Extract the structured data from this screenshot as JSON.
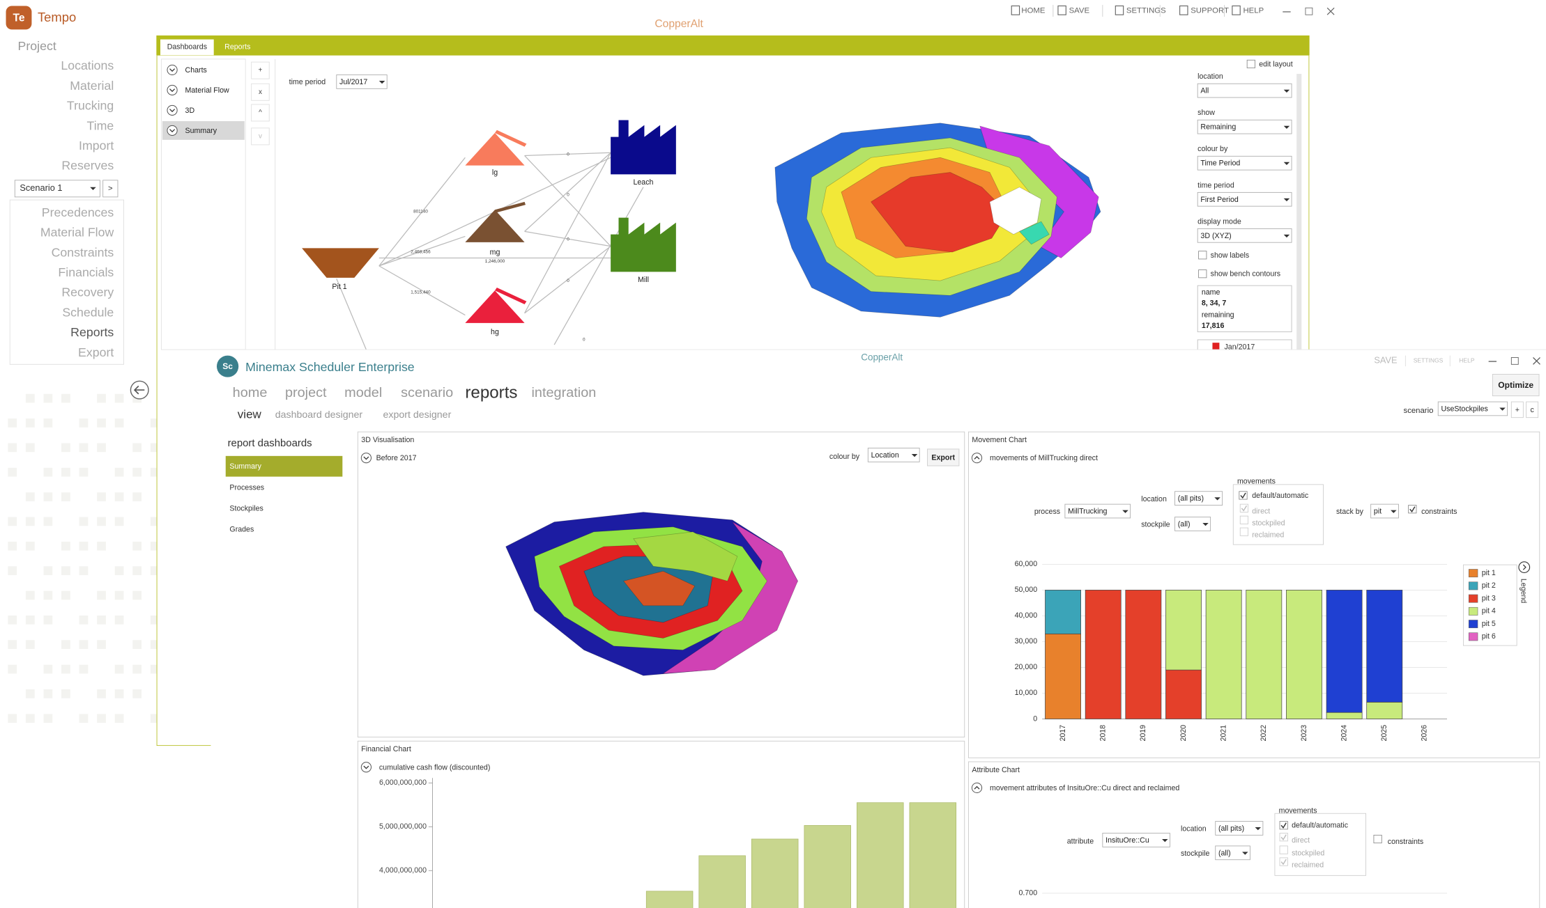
{
  "tempo": {
    "logo": "Te",
    "app_name": "Tempo",
    "project_name": "CopperAlt",
    "menu": [
      "HOME",
      "SAVE",
      "SETTINGS",
      "SUPPORT",
      "HELP"
    ],
    "nav_header": "Project",
    "nav_items": [
      "Locations",
      "Material",
      "Trucking",
      "Time",
      "Import",
      "Reserves"
    ],
    "scenario": "Scenario 1",
    "scenario_button": ">",
    "scenario_items": [
      "Precedences",
      "Material Flow",
      "Constraints",
      "Financials",
      "Recovery",
      "Schedule",
      "Reports",
      "Export"
    ],
    "tabs": [
      "Dashboards",
      "Reports"
    ],
    "dashboards": [
      "Charts",
      "Material Flow",
      "3D",
      "Summary"
    ],
    "list_buttons": [
      "+",
      "x",
      "^",
      "v"
    ],
    "time_period_label": "time period",
    "time_period": "Jul/2017",
    "flow": {
      "nodes": [
        "Pit 1",
        "lg",
        "mg",
        "hg",
        "Leach",
        "Mill"
      ],
      "mg_amount": "1,246,000",
      "edge_labels": [
        "801140",
        "2,468,456",
        "1,515,440",
        "0",
        "0",
        "0",
        "0",
        "0"
      ]
    },
    "settings": {
      "edit_layout": "edit layout",
      "fields": [
        {
          "label": "location",
          "value": "All"
        },
        {
          "label": "show",
          "value": "Remaining"
        },
        {
          "label": "colour by",
          "value": "Time Period"
        },
        {
          "label": "time period",
          "value": "First Period"
        },
        {
          "label": "display mode",
          "value": "3D (XYZ)"
        }
      ],
      "show_labels": "show labels",
      "show_bench_contours": "show bench contours",
      "info": [
        "name",
        "8, 34, 7",
        "remaining",
        "17,816"
      ],
      "legend_first": "Jan/2017"
    }
  },
  "minemax": {
    "logo": "Sc",
    "app_name": "Minemax Scheduler Enterprise",
    "project_name": "CopperAlt",
    "menu": [
      "SAVE",
      "SETTINGS",
      "HELP"
    ],
    "optimize": "Optimize",
    "nav": [
      "home",
      "project",
      "model",
      "scenario",
      "reports",
      "integration"
    ],
    "subnav": [
      "view",
      "dashboard designer",
      "export designer"
    ],
    "scenario_label": "scenario",
    "scenario": "UseStockpiles",
    "scenario_buttons": [
      "+",
      "c"
    ],
    "sidebar_title": "report dashboards",
    "sidebar_items": [
      "Summary",
      "Processes",
      "Stockpiles",
      "Grades"
    ],
    "visualisation": {
      "title": "3D Visualisation",
      "period": "Before 2017",
      "colour_by_label": "colour by",
      "colour_by": "Location",
      "export": "Export"
    },
    "financial_chart": {
      "type": "bar",
      "title": "Financial Chart",
      "subtitle": "cumulative cash flow (discounted)",
      "values": [
        3530000000,
        4340000000,
        4720000000,
        5030000000,
        5550000000,
        5550000000
      ],
      "color": "#c8d68e",
      "ylim": [
        3000000000,
        6000000000
      ],
      "yticks": [
        {
          "value": 4000000000,
          "label": "4,000,000,000"
        },
        {
          "value": 5000000000,
          "label": "5,000,000,000"
        },
        {
          "value": 6000000000,
          "label": "6,000,000,000"
        }
      ]
    },
    "movement_chart": {
      "type": "bar",
      "stacked": true,
      "title": "Movement Chart",
      "subtitle": "movements of MillTrucking direct",
      "process_label": "process",
      "process": "MillTrucking",
      "location_label": "location",
      "location": "(all pits)",
      "stockpile_label": "stockpile",
      "stockpile": "(all)",
      "movements_label": "movements",
      "movements": [
        "default/automatic",
        "direct",
        "stockpiled",
        "reclaimed"
      ],
      "stack_by_label": "stack by",
      "stack_by": "pit",
      "constraints": "constraints",
      "legend_title": "Legend",
      "categories": [
        "2017",
        "2018",
        "2019",
        "2020",
        "2021",
        "2022",
        "2023",
        "2024",
        "2025",
        "2026"
      ],
      "series": [
        {
          "name": "pit 1",
          "color": "#e8812c",
          "values": [
            33000,
            0,
            0,
            0,
            0,
            0,
            0,
            0,
            0,
            0
          ]
        },
        {
          "name": "pit 2",
          "color": "#3ba4b8",
          "values": [
            17000,
            0,
            0,
            0,
            0,
            0,
            0,
            0,
            0,
            0
          ]
        },
        {
          "name": "pit 3",
          "color": "#e4402a",
          "values": [
            0,
            50000,
            50000,
            19000,
            0,
            0,
            0,
            0,
            0,
            0
          ]
        },
        {
          "name": "pit 4",
          "color": "#c8ea7c",
          "values": [
            0,
            0,
            0,
            31000,
            50000,
            50000,
            50000,
            2500,
            6500,
            0
          ]
        },
        {
          "name": "pit 5",
          "color": "#1f40d2",
          "values": [
            0,
            0,
            0,
            0,
            0,
            0,
            0,
            47500,
            43500,
            0
          ]
        },
        {
          "name": "pit 6",
          "color": "#e262c2",
          "values": [
            0,
            0,
            0,
            0,
            0,
            0,
            0,
            0,
            0,
            0
          ]
        }
      ],
      "ylim": [
        0,
        60000
      ],
      "yticks": [
        0,
        {
          "value": 10000,
          "label": "10,000"
        },
        {
          "value": 20000,
          "label": "20,000"
        },
        {
          "value": 30000,
          "label": "30,000"
        },
        {
          "value": 40000,
          "label": "40,000"
        },
        {
          "value": 50000,
          "label": "50,000"
        },
        {
          "value": 60000,
          "label": "60,000"
        }
      ],
      "grid": true
    },
    "attribute_chart": {
      "title": "Attribute Chart",
      "subtitle": "movement attributes of InsituOre::Cu direct and reclaimed",
      "attribute_label": "attribute",
      "attribute": "InsituOre::Cu",
      "location_label": "location",
      "location": "(all pits)",
      "stockpile_label": "stockpile",
      "stockpile": "(all)",
      "movements_label": "movements",
      "movements": [
        "default/automatic",
        "direct",
        "stockpiled",
        "reclaimed"
      ],
      "constraints": "constraints",
      "yticks": [
        {
          "value": 0.7,
          "label": "0.700"
        }
      ]
    }
  }
}
